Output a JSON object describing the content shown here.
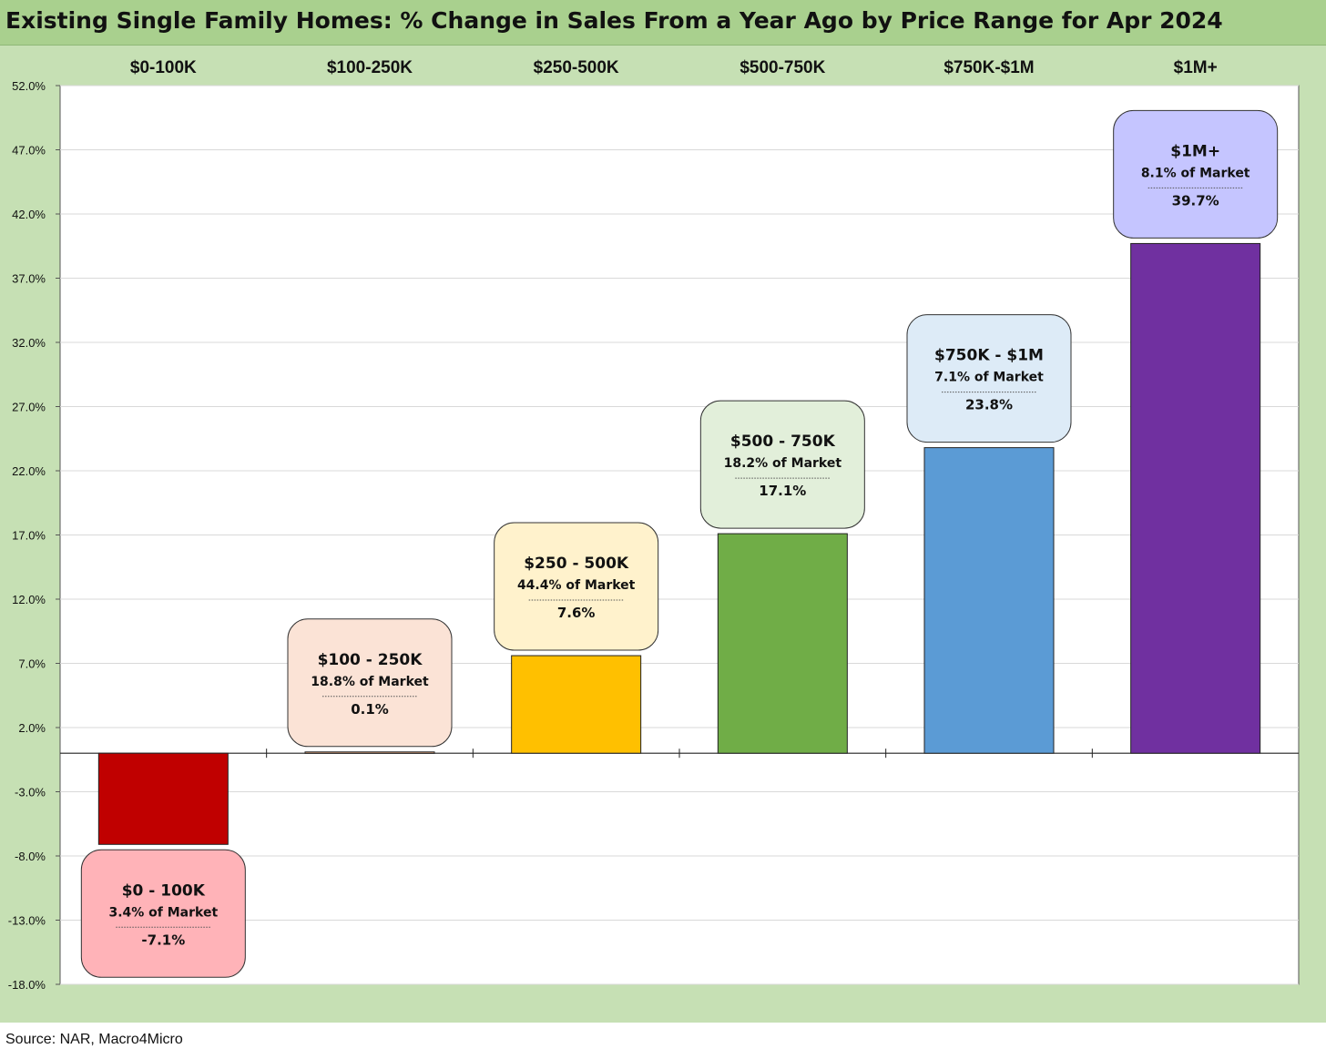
{
  "title": "Existing Single Family Homes: % Change in Sales From a Year Ago by Price Range for Apr 2024",
  "source": "Source: NAR, Macro4Micro",
  "chart_data": {
    "type": "bar",
    "title": "Existing Single Family Homes: % Change in Sales From a Year Ago by Price Range for Apr 2024",
    "categories": [
      "$0-100K",
      "$100-250K",
      "$250-500K",
      "$500-750K",
      "$750K-$1M",
      "$1M+"
    ],
    "values": [
      -7.1,
      0.1,
      7.6,
      17.1,
      23.8,
      39.7
    ],
    "ylim": [
      -18,
      52
    ],
    "yticks": [
      52,
      47,
      42,
      37,
      32,
      27,
      22,
      17,
      12,
      7,
      2,
      -3,
      -8,
      -13,
      -18
    ],
    "ytick_format": "percent_1dp",
    "grid": true,
    "bar_colors": [
      "#c00000",
      "#f4b084",
      "#ffc000",
      "#70ad47",
      "#5b9bd5",
      "#7030a0"
    ],
    "annotations": [
      {
        "label": "$0 - 100K",
        "share": "3.4% of Market",
        "value": "-7.1%",
        "fill": "#ffb3b8"
      },
      {
        "label": "$100 - 250K",
        "share": "18.8% of Market",
        "value": "0.1%",
        "fill": "#fbe3d6"
      },
      {
        "label": "$250 - 500K",
        "share": "44.4% of Market",
        "value": "7.6%",
        "fill": "#fff2cc"
      },
      {
        "label": "$500 - 750K",
        "share": "18.2% of Market",
        "value": "17.1%",
        "fill": "#e2efda"
      },
      {
        "label": "$750K - $1M",
        "share": "7.1% of Market",
        "value": "23.8%",
        "fill": "#ddebf7"
      },
      {
        "label": "$1M+",
        "share": "8.1% of Market",
        "value": "39.7%",
        "fill": "#c5c5ff"
      }
    ]
  }
}
